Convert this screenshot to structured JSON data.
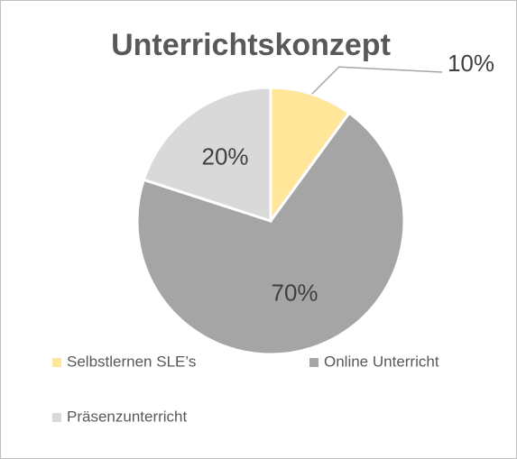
{
  "chart_data": {
    "type": "pie",
    "title": "Unterrichtskonzept",
    "categories": [
      "Selbstlernen SLE’s",
      "Online Unterricht",
      "Präsenzunterricht"
    ],
    "values": [
      10,
      70,
      20
    ],
    "value_labels": [
      "10%",
      "70%",
      "20%"
    ],
    "colors": [
      "#ffe699",
      "#a5a5a5",
      "#d9d9d9"
    ]
  }
}
